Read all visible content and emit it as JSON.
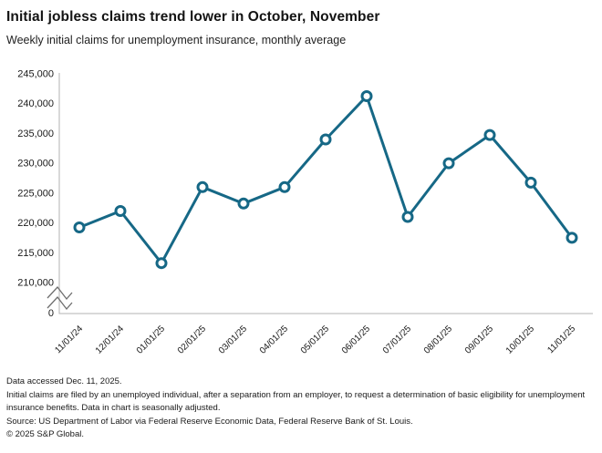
{
  "header": {
    "title": "Initial jobless claims trend lower in October, November",
    "subtitle": "Weekly initial claims for unemployment insurance, monthly average"
  },
  "chart_data": {
    "type": "line",
    "title": "Initial jobless claims trend lower in October, November",
    "subtitle": "Weekly initial claims for unemployment insurance, monthly average",
    "series_name": "Weekly initial claims for unemployment insurance, monthly average",
    "categories": [
      "11/01/24",
      "12/01/24",
      "01/01/25",
      "02/01/25",
      "03/01/25",
      "04/01/25",
      "05/01/25",
      "06/01/25",
      "07/01/25",
      "08/01/25",
      "09/01/25",
      "10/01/25",
      "11/01/25"
    ],
    "values": [
      219250,
      222000,
      213250,
      226000,
      223250,
      226000,
      234000,
      241250,
      221000,
      230000,
      234750,
      226750,
      217500
    ],
    "xlabel": "",
    "ylabel": "",
    "ytick_values": [
      245000,
      240000,
      235000,
      230000,
      225000,
      220000,
      215000,
      210000
    ],
    "ytick_labels": [
      "245,000",
      "240,000",
      "235,000",
      "230,000",
      "225,000",
      "220,000",
      "215,000",
      "210,000"
    ],
    "ytick_zero_label": "0",
    "ylim_display": [
      210000,
      245000
    ],
    "axis_break": true,
    "grid": false,
    "legend_position": "none",
    "marker_style": "open-circle",
    "colors": {
      "line": "#166886",
      "marker_fill": "#ffffff",
      "axis": "#b3b3b3",
      "break_mark": "#6e6e6e",
      "tick_text": "#1a1a1a"
    }
  },
  "footer": {
    "accessed": "Data accessed Dec. 11, 2025.",
    "note": "Initial claims are filed by an unemployed individual, after a separation from an employer, to request a determination of basic eligibility for unemployment insurance benefits. Data in chart is seasonally adjusted.",
    "source": "Source: US Department of Labor via Federal Reserve Economic Data, Federal Reserve Bank of St. Louis.",
    "copyright": "© 2025 S&P Global."
  }
}
